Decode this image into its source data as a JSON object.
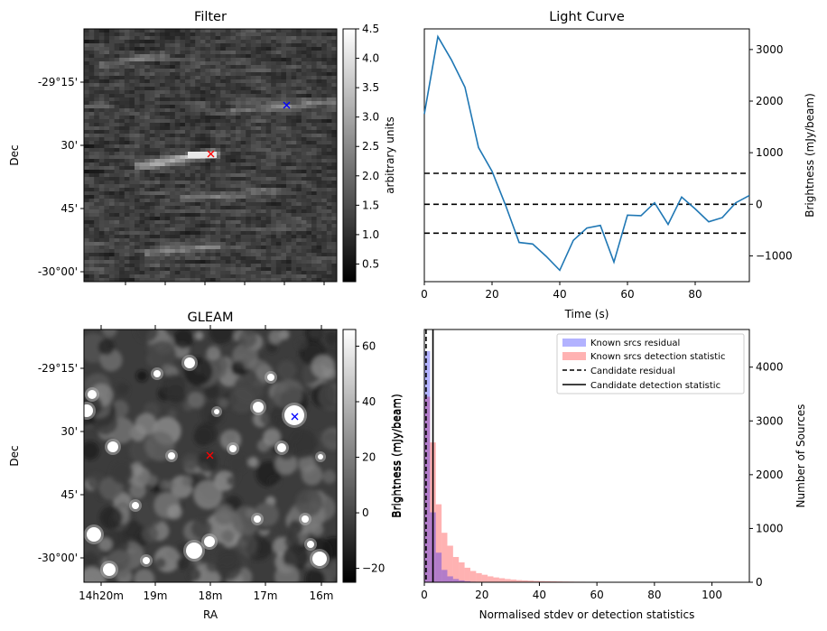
{
  "chart_data": [
    {
      "type": "heatmap",
      "title": "Filter",
      "xlabel": "",
      "ylabel": "Dec",
      "y_ticks": [
        "-29°15'",
        "30'",
        "45'",
        "-30°00'"
      ],
      "colorbar": {
        "label": "arbitrary units",
        "range": [
          0.2,
          4.5
        ],
        "ticks": [
          "0.5",
          "1.0",
          "1.5",
          "2.0",
          "2.5",
          "3.0",
          "3.5",
          "4.0",
          "4.5"
        ],
        "colormap": "gray"
      },
      "markers": [
        {
          "name": "candidate",
          "color": "#ff0000",
          "symbol": "x"
        },
        {
          "name": "known-source",
          "color": "#0000ff",
          "symbol": "x"
        }
      ]
    },
    {
      "type": "line",
      "title": "Light Curve",
      "xlabel": "Time (s)",
      "ylabel": "Brightness (mJy/beam)",
      "xlim": [
        0,
        96
      ],
      "ylim": [
        -1500,
        3400
      ],
      "x_ticks": [
        "0",
        "20",
        "40",
        "60",
        "80"
      ],
      "y_ticks": [
        "−1000",
        "0",
        "1000",
        "2000",
        "3000"
      ],
      "line_color": "#1f77b4",
      "series": [
        {
          "x": [
            0,
            4,
            8,
            12,
            16,
            20,
            24,
            28,
            32,
            36,
            40,
            44,
            48,
            52,
            56,
            60,
            64,
            68,
            72,
            76,
            80,
            84,
            88,
            92,
            96
          ],
          "values": [
            1750,
            3250,
            2800,
            2270,
            1100,
            640,
            -20,
            -740,
            -770,
            -1010,
            -1280,
            -700,
            -460,
            -410,
            -1120,
            -210,
            -220,
            30,
            -390,
            140,
            -90,
            -340,
            -260,
            30,
            170
          ]
        }
      ],
      "hlines": [
        {
          "y": 600,
          "style": "dashed"
        },
        {
          "y": 0,
          "style": "dashed"
        },
        {
          "y": -560,
          "style": "dashed"
        }
      ]
    },
    {
      "type": "heatmap",
      "title": "GLEAM",
      "xlabel": "RA",
      "ylabel": "Dec",
      "x_ticks": [
        "14h20m",
        "19m",
        "18m",
        "17m",
        "16m"
      ],
      "y_ticks": [
        "-29°15'",
        "30'",
        "45'",
        "-30°00'"
      ],
      "colorbar": {
        "label": "Brightness (mJy/beam)",
        "range": [
          -25,
          66
        ],
        "ticks": [
          "60",
          "40",
          "20",
          "0",
          "−20"
        ],
        "colormap": "gray"
      },
      "markers": [
        {
          "name": "candidate",
          "color": "#ff0000",
          "symbol": "x"
        },
        {
          "name": "known-source",
          "color": "#0000ff",
          "symbol": "x"
        }
      ]
    },
    {
      "type": "bar",
      "title": "",
      "xlabel": "Normalised stdev or detection statistics",
      "ylabel": "Brightness (mJy/beam)",
      "ylabel_right": "Number of Sources",
      "xlim": [
        0,
        113
      ],
      "ylim": [
        0,
        4700
      ],
      "x_ticks": [
        "0",
        "20",
        "40",
        "60",
        "80",
        "100"
      ],
      "y_ticks": [
        "0",
        "1000",
        "2000",
        "3000",
        "4000"
      ],
      "legend_position": "top-right",
      "bin_width": 2,
      "series": [
        {
          "name": "Known srcs residual",
          "color": "#0000ff",
          "alpha": 0.3,
          "bins_start": [
            0,
            2,
            4,
            6,
            8,
            10,
            12,
            14,
            16
          ],
          "values": [
            4300,
            1300,
            550,
            230,
            110,
            60,
            35,
            20,
            10
          ]
        },
        {
          "name": "Known srcs detection statistic",
          "color": "#ff0000",
          "alpha": 0.3,
          "bins_start": [
            0,
            2,
            4,
            6,
            8,
            10,
            12,
            14,
            16,
            18,
            20,
            22,
            24,
            26,
            28,
            30,
            32,
            34,
            36,
            38,
            40,
            42,
            44,
            46,
            48,
            50,
            52,
            54,
            56,
            58,
            60,
            62,
            64,
            66,
            68,
            70,
            72,
            74,
            76,
            78,
            80,
            82,
            84,
            86,
            88,
            90,
            92,
            94,
            96,
            98,
            100,
            102,
            104,
            106,
            108,
            110
          ],
          "values": [
            3450,
            2600,
            1450,
            920,
            680,
            470,
            370,
            270,
            210,
            170,
            140,
            110,
            90,
            75,
            60,
            50,
            40,
            35,
            30,
            25,
            22,
            20,
            18,
            15,
            13,
            12,
            10,
            9,
            8,
            7,
            6,
            6,
            5,
            5,
            4,
            4,
            4,
            3,
            3,
            3,
            3,
            2,
            2,
            2,
            2,
            2,
            2,
            2,
            1,
            1,
            1,
            1,
            1,
            1,
            1,
            1
          ]
        }
      ],
      "vlines": [
        {
          "name": "Candidate residual",
          "x": 0.6,
          "style": "dashed"
        },
        {
          "name": "Candidate detection statistic",
          "x": 3.0,
          "style": "solid"
        }
      ]
    }
  ]
}
